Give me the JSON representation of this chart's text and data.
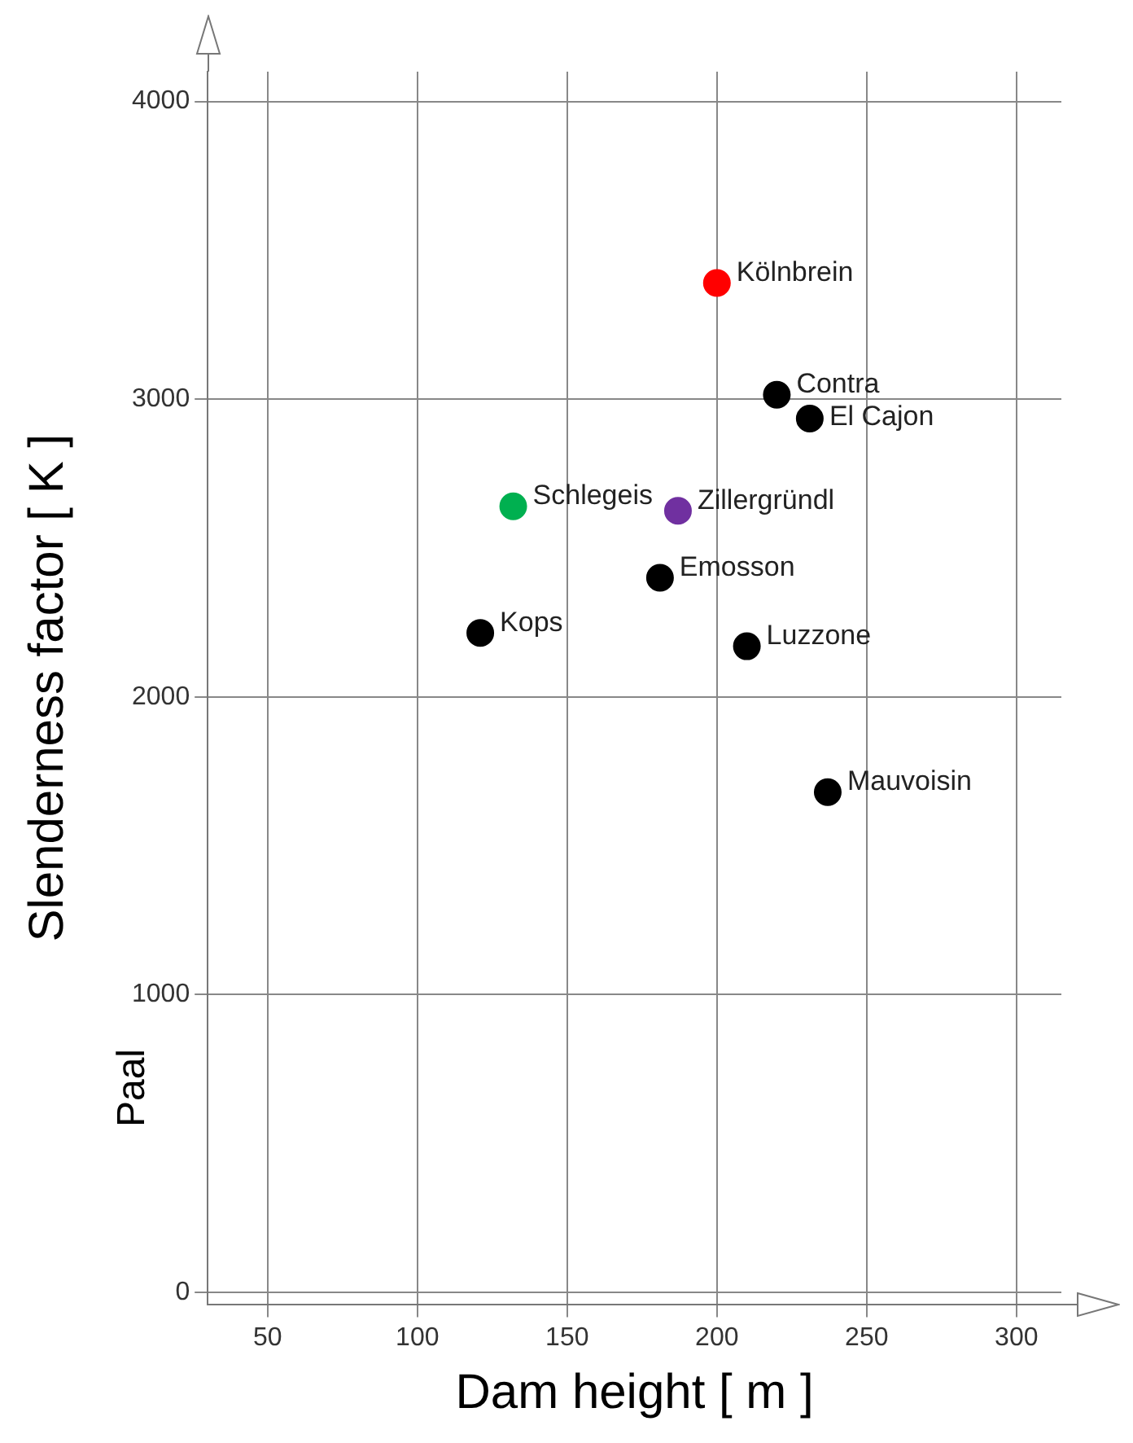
{
  "chart_data": {
    "type": "scatter",
    "xlabel": "Dam height [ m ]",
    "ylabel": "Slenderness factor [ K ]",
    "xlim": [
      30,
      315
    ],
    "ylim": [
      -40,
      4100
    ],
    "xticks": [
      50,
      100,
      150,
      200,
      250,
      300
    ],
    "yticks": [
      0,
      1000,
      2000,
      3000,
      4000
    ],
    "grid": true,
    "legend": false,
    "marker": "circle",
    "annotations": [
      "Paal"
    ],
    "series": [
      {
        "name": "Kölnbrein",
        "color": "#ff0000",
        "x": [
          200
        ],
        "values": [
          3390
        ]
      },
      {
        "name": "Contra",
        "color": "#000000",
        "x": [
          220
        ],
        "values": [
          3015
        ]
      },
      {
        "name": "El Cajon",
        "color": "#000000",
        "x": [
          231
        ],
        "values": [
          2935
        ]
      },
      {
        "name": "Schlegeis",
        "color": "#00b050",
        "x": [
          132
        ],
        "values": [
          2640
        ]
      },
      {
        "name": "Zillergründl",
        "color": "#7030a0",
        "x": [
          187
        ],
        "values": [
          2625
        ]
      },
      {
        "name": "Emosson",
        "color": "#000000",
        "x": [
          181
        ],
        "values": [
          2400
        ]
      },
      {
        "name": "Kops",
        "color": "#000000",
        "x": [
          121
        ],
        "values": [
          2215
        ]
      },
      {
        "name": "Luzzone",
        "color": "#000000",
        "x": [
          210
        ],
        "values": [
          2170
        ]
      },
      {
        "name": "Mauvoisin",
        "color": "#000000",
        "x": [
          237
        ],
        "values": [
          1680
        ]
      }
    ]
  }
}
